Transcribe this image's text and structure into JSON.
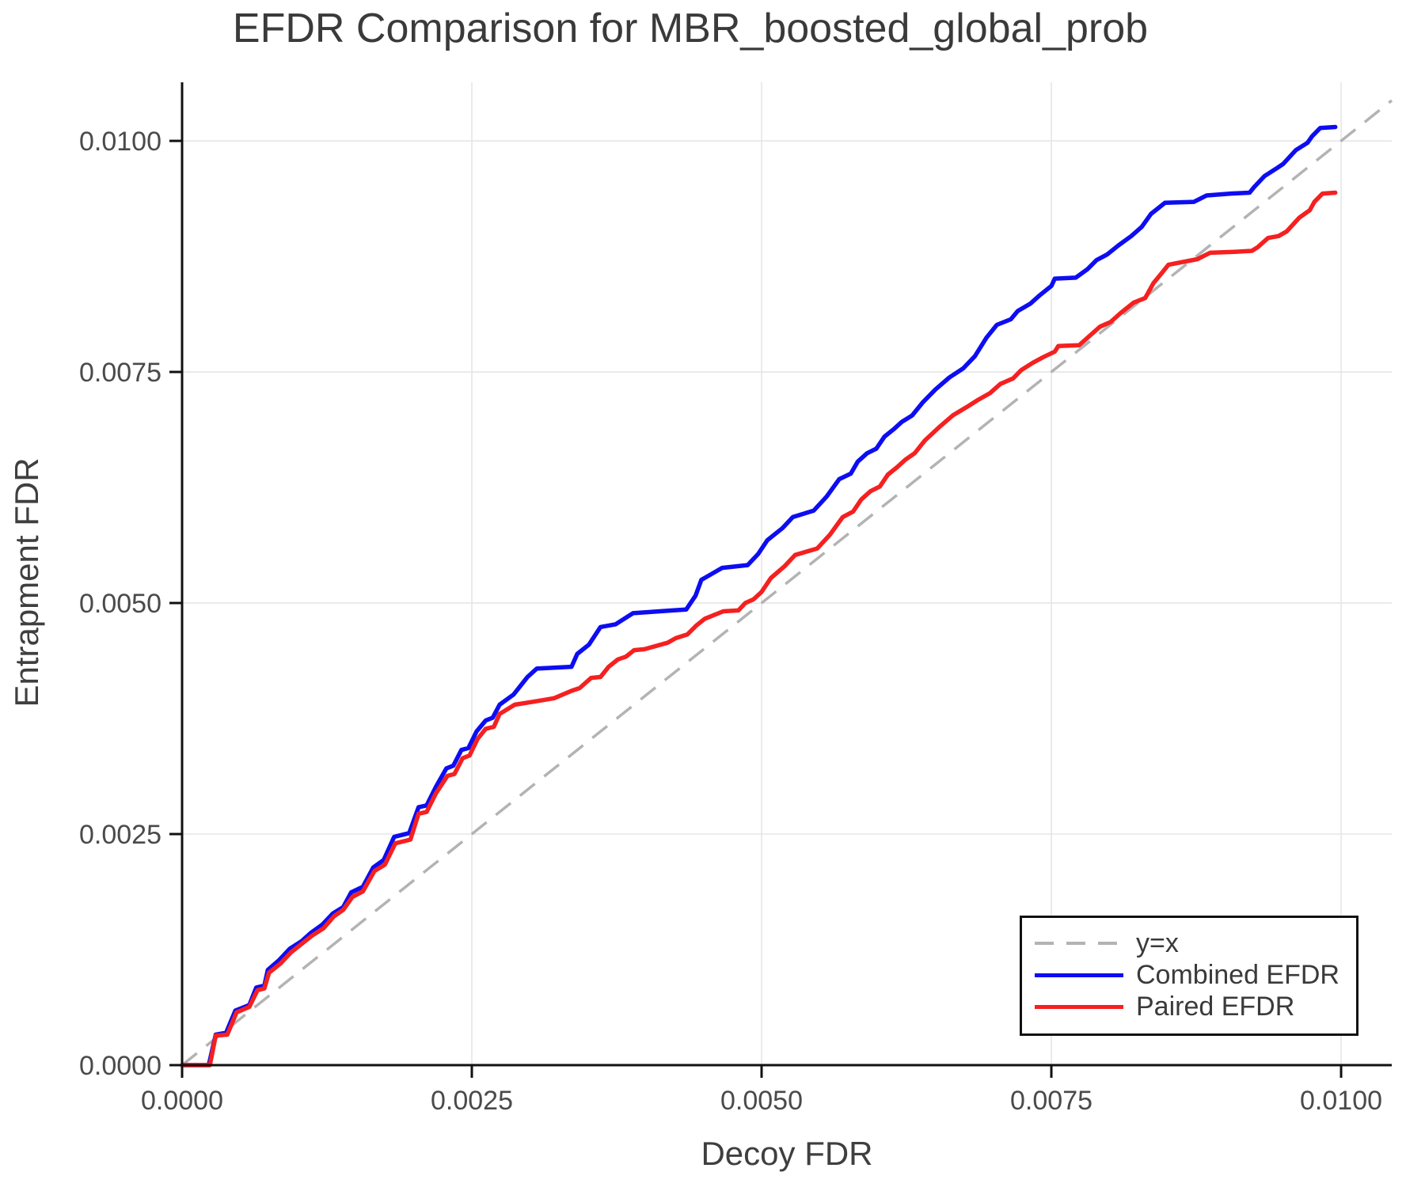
{
  "colors": {
    "background": "#ffffff",
    "grid": "#e6e6e6",
    "spine": "#111111",
    "tick_label": "#4a4a4a",
    "title": "#3a3a3a",
    "diagonal": "#b3b3b3",
    "combined": "#0d0df2",
    "paired": "#f52020",
    "legend_border": "#111111"
  },
  "legend": {
    "items": [
      {
        "id": "legend-item-identity",
        "label": "y=x",
        "style": "dashed",
        "color": "#b3b3b3"
      },
      {
        "id": "legend-item-combined",
        "label": "Combined EFDR",
        "style": "solid",
        "color": "#0d0df2"
      },
      {
        "id": "legend-item-paired",
        "label": "Paired EFDR",
        "style": "solid",
        "color": "#f52020"
      }
    ],
    "position": "lower right"
  },
  "chart_data": {
    "type": "line",
    "title": "EFDR Comparison for MBR_boosted_global_prob",
    "xlabel": "Decoy FDR",
    "ylabel": "Entrapment FDR",
    "xlim": [
      0,
      0.010437
    ],
    "ylim": [
      0,
      0.010634
    ],
    "xticks": [
      0.0,
      0.0025,
      0.005,
      0.0075,
      0.01
    ],
    "xtick_labels": [
      "0.0000",
      "0.0025",
      "0.0050",
      "0.0075",
      "0.0100"
    ],
    "yticks": [
      0.0,
      0.0025,
      0.005,
      0.0075,
      0.01
    ],
    "ytick_labels": [
      "0.0000",
      "0.0025",
      "0.0050",
      "0.0075",
      "0.0100"
    ],
    "grid": true,
    "diagonal": {
      "label": "y=x",
      "from": [
        0,
        0
      ],
      "to": [
        0.010437,
        0.010437
      ],
      "color": "#b3b3b3"
    },
    "series": [
      {
        "id": "combined-efdr-line",
        "name": "Combined EFDR",
        "color": "#0d0df2",
        "points": [
          [
            0.0,
            0.0
          ],
          [
            0.00023,
            0.0
          ],
          [
            0.00029,
            0.00033
          ],
          [
            0.00038,
            0.00035
          ],
          [
            0.00046,
            0.00059
          ],
          [
            0.00058,
            0.00065
          ],
          [
            0.00064,
            0.00084
          ],
          [
            0.00071,
            0.00086
          ],
          [
            0.00074,
            0.00103
          ],
          [
            0.00084,
            0.00114
          ],
          [
            0.00093,
            0.00126
          ],
          [
            0.00103,
            0.00134
          ],
          [
            0.00111,
            0.00143
          ],
          [
            0.00121,
            0.00152
          ],
          [
            0.0013,
            0.00164
          ],
          [
            0.00139,
            0.00171
          ],
          [
            0.00146,
            0.00187
          ],
          [
            0.00156,
            0.00193
          ],
          [
            0.00165,
            0.00214
          ],
          [
            0.00174,
            0.00222
          ],
          [
            0.00183,
            0.00247
          ],
          [
            0.00196,
            0.00251
          ],
          [
            0.00204,
            0.00279
          ],
          [
            0.00211,
            0.00281
          ],
          [
            0.00219,
            0.00301
          ],
          [
            0.00228,
            0.00321
          ],
          [
            0.00234,
            0.00324
          ],
          [
            0.00241,
            0.00341
          ],
          [
            0.00247,
            0.00343
          ],
          [
            0.00254,
            0.00361
          ],
          [
            0.00262,
            0.00373
          ],
          [
            0.00268,
            0.00376
          ],
          [
            0.00274,
            0.0039
          ],
          [
            0.00286,
            0.00401
          ],
          [
            0.00298,
            0.0042
          ],
          [
            0.00306,
            0.00429
          ],
          [
            0.00336,
            0.00431
          ],
          [
            0.00341,
            0.00445
          ],
          [
            0.00351,
            0.00455
          ],
          [
            0.00361,
            0.00474
          ],
          [
            0.00374,
            0.00477
          ],
          [
            0.00389,
            0.00489
          ],
          [
            0.00423,
            0.00492
          ],
          [
            0.00435,
            0.00493
          ],
          [
            0.00443,
            0.00508
          ],
          [
            0.00448,
            0.00525
          ],
          [
            0.00466,
            0.00538
          ],
          [
            0.00488,
            0.00541
          ],
          [
            0.00497,
            0.00553
          ],
          [
            0.00505,
            0.00568
          ],
          [
            0.00518,
            0.00581
          ],
          [
            0.00527,
            0.00593
          ],
          [
            0.00545,
            0.006
          ],
          [
            0.00556,
            0.00615
          ],
          [
            0.00567,
            0.00634
          ],
          [
            0.00577,
            0.0064
          ],
          [
            0.00583,
            0.00653
          ],
          [
            0.00591,
            0.00662
          ],
          [
            0.00599,
            0.00667
          ],
          [
            0.00606,
            0.0068
          ],
          [
            0.00614,
            0.00688
          ],
          [
            0.00621,
            0.00696
          ],
          [
            0.0063,
            0.00703
          ],
          [
            0.00639,
            0.00717
          ],
          [
            0.0065,
            0.00731
          ],
          [
            0.00662,
            0.00744
          ],
          [
            0.00674,
            0.00754
          ],
          [
            0.00684,
            0.00767
          ],
          [
            0.00694,
            0.00787
          ],
          [
            0.00703,
            0.00801
          ],
          [
            0.00715,
            0.00807
          ],
          [
            0.00721,
            0.00816
          ],
          [
            0.00732,
            0.00824
          ],
          [
            0.0074,
            0.00833
          ],
          [
            0.0075,
            0.00843
          ],
          [
            0.00753,
            0.00851
          ],
          [
            0.00771,
            0.00852
          ],
          [
            0.00781,
            0.00861
          ],
          [
            0.00789,
            0.00871
          ],
          [
            0.00798,
            0.00877
          ],
          [
            0.00808,
            0.00887
          ],
          [
            0.00819,
            0.00897
          ],
          [
            0.00828,
            0.00907
          ],
          [
            0.00836,
            0.00921
          ],
          [
            0.00842,
            0.00927
          ],
          [
            0.00848,
            0.00933
          ],
          [
            0.00873,
            0.00934
          ],
          [
            0.00884,
            0.00941
          ],
          [
            0.00905,
            0.00943
          ],
          [
            0.00921,
            0.00944
          ],
          [
            0.00925,
            0.0095
          ],
          [
            0.00934,
            0.00962
          ],
          [
            0.00944,
            0.0097
          ],
          [
            0.0095,
            0.00975
          ],
          [
            0.00961,
            0.0099
          ],
          [
            0.00971,
            0.00998
          ],
          [
            0.00975,
            0.01005
          ],
          [
            0.00982,
            0.01014
          ],
          [
            0.00995,
            0.01015
          ]
        ]
      },
      {
        "id": "paired-efdr-line",
        "name": "Paired EFDR",
        "color": "#f52020",
        "points": [
          [
            0.0,
            0.0
          ],
          [
            0.00024,
            0.0
          ],
          [
            0.00029,
            0.00032
          ],
          [
            0.00039,
            0.00033
          ],
          [
            0.00047,
            0.00057
          ],
          [
            0.00058,
            0.00063
          ],
          [
            0.00065,
            0.00081
          ],
          [
            0.00071,
            0.00083
          ],
          [
            0.00075,
            0.001
          ],
          [
            0.00085,
            0.0011
          ],
          [
            0.00094,
            0.00122
          ],
          [
            0.00103,
            0.00131
          ],
          [
            0.00112,
            0.0014
          ],
          [
            0.00122,
            0.00148
          ],
          [
            0.00131,
            0.00161
          ],
          [
            0.00139,
            0.00168
          ],
          [
            0.00147,
            0.00182
          ],
          [
            0.00156,
            0.00188
          ],
          [
            0.00166,
            0.0021
          ],
          [
            0.00175,
            0.00217
          ],
          [
            0.00184,
            0.0024
          ],
          [
            0.00197,
            0.00244
          ],
          [
            0.00204,
            0.00272
          ],
          [
            0.00211,
            0.00274
          ],
          [
            0.00219,
            0.00294
          ],
          [
            0.00229,
            0.00313
          ],
          [
            0.00235,
            0.00315
          ],
          [
            0.00242,
            0.00332
          ],
          [
            0.00248,
            0.00335
          ],
          [
            0.00255,
            0.00353
          ],
          [
            0.00262,
            0.00364
          ],
          [
            0.00269,
            0.00366
          ],
          [
            0.00274,
            0.0038
          ],
          [
            0.00287,
            0.0039
          ],
          [
            0.00307,
            0.00394
          ],
          [
            0.00321,
            0.00397
          ],
          [
            0.00336,
            0.00405
          ],
          [
            0.00343,
            0.00408
          ],
          [
            0.00353,
            0.00419
          ],
          [
            0.00361,
            0.0042
          ],
          [
            0.00368,
            0.00431
          ],
          [
            0.00376,
            0.00439
          ],
          [
            0.00383,
            0.00442
          ],
          [
            0.0039,
            0.00449
          ],
          [
            0.00399,
            0.0045
          ],
          [
            0.00419,
            0.00457
          ],
          [
            0.00426,
            0.00462
          ],
          [
            0.00436,
            0.00466
          ],
          [
            0.00444,
            0.00476
          ],
          [
            0.00451,
            0.00483
          ],
          [
            0.00459,
            0.00487
          ],
          [
            0.00467,
            0.00491
          ],
          [
            0.0048,
            0.00492
          ],
          [
            0.00486,
            0.005
          ],
          [
            0.00493,
            0.00504
          ],
          [
            0.005,
            0.00512
          ],
          [
            0.00508,
            0.00527
          ],
          [
            0.0052,
            0.0054
          ],
          [
            0.00529,
            0.00552
          ],
          [
            0.00548,
            0.00559
          ],
          [
            0.00559,
            0.00574
          ],
          [
            0.0057,
            0.00593
          ],
          [
            0.00579,
            0.00599
          ],
          [
            0.00586,
            0.00612
          ],
          [
            0.00594,
            0.00621
          ],
          [
            0.00602,
            0.00626
          ],
          [
            0.00609,
            0.00639
          ],
          [
            0.00617,
            0.00647
          ],
          [
            0.00624,
            0.00655
          ],
          [
            0.00632,
            0.00662
          ],
          [
            0.00641,
            0.00676
          ],
          [
            0.00653,
            0.0069
          ],
          [
            0.00665,
            0.00703
          ],
          [
            0.00677,
            0.00712
          ],
          [
            0.00687,
            0.0072
          ],
          [
            0.00697,
            0.00727
          ],
          [
            0.00706,
            0.00737
          ],
          [
            0.00717,
            0.00743
          ],
          [
            0.00724,
            0.00752
          ],
          [
            0.00734,
            0.0076
          ],
          [
            0.00743,
            0.00766
          ],
          [
            0.00753,
            0.00772
          ],
          [
            0.00756,
            0.00778
          ],
          [
            0.00774,
            0.00779
          ],
          [
            0.00783,
            0.00789
          ],
          [
            0.00792,
            0.00799
          ],
          [
            0.00801,
            0.00804
          ],
          [
            0.0081,
            0.00814
          ],
          [
            0.00821,
            0.00825
          ],
          [
            0.00831,
            0.0083
          ],
          [
            0.00838,
            0.00846
          ],
          [
            0.00844,
            0.00855
          ],
          [
            0.00851,
            0.00866
          ],
          [
            0.00876,
            0.00872
          ],
          [
            0.00887,
            0.00879
          ],
          [
            0.00908,
            0.0088
          ],
          [
            0.00923,
            0.00881
          ],
          [
            0.00928,
            0.00885
          ],
          [
            0.00937,
            0.00895
          ],
          [
            0.00946,
            0.00897
          ],
          [
            0.00953,
            0.00902
          ],
          [
            0.00964,
            0.00917
          ],
          [
            0.00973,
            0.00925
          ],
          [
            0.00977,
            0.00934
          ],
          [
            0.00984,
            0.00943
          ],
          [
            0.00995,
            0.00944
          ]
        ]
      }
    ]
  }
}
